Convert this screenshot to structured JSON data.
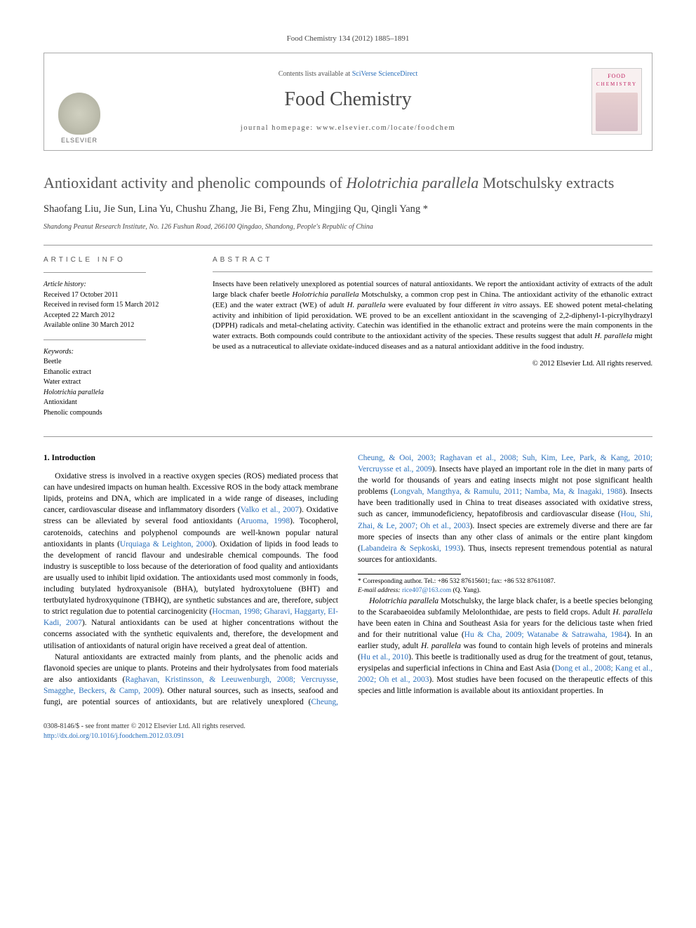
{
  "journal_ref": "Food Chemistry 134 (2012) 1885–1891",
  "header": {
    "contents_prefix": "Contents lists available at ",
    "contents_link": "SciVerse ScienceDirect",
    "journal_title": "Food Chemistry",
    "homepage_prefix": "journal homepage: ",
    "homepage_url": "www.elsevier.com/locate/foodchem",
    "publisher_name": "ELSEVIER",
    "cover_line1": "FOOD",
    "cover_line2": "CHEMISTRY"
  },
  "article": {
    "title_part1": "Antioxidant activity and phenolic compounds of ",
    "title_italic": "Holotrichia parallela",
    "title_part2": " Motschulsky extracts",
    "authors": "Shaofang Liu, Jie Sun, Lina Yu, Chushu Zhang, Jie Bi, Feng Zhu, Mingjing Qu, Qingli Yang *",
    "affiliation": "Shandong Peanut Research Institute, No. 126 Fushun Road, 266100 Qingdao, Shandong, People's Republic of China"
  },
  "article_info": {
    "heading": "ARTICLE INFO",
    "history_label": "Article history:",
    "received": "Received 17 October 2011",
    "revised": "Received in revised form 15 March 2012",
    "accepted": "Accepted 22 March 2012",
    "online": "Available online 30 March 2012",
    "keywords_label": "Keywords:",
    "keywords": [
      "Beetle",
      "Ethanolic extract",
      "Water extract",
      "Holotrichia parallela",
      "Antioxidant",
      "Phenolic compounds"
    ],
    "keyword_italic_index": 3
  },
  "abstract": {
    "heading": "ABSTRACT",
    "text_parts": [
      {
        "t": "Insects have been relatively unexplored as potential sources of natural antioxidants. We report the antioxidant activity of extracts of the adult large black chafer beetle "
      },
      {
        "t": "Holotrichia parallela",
        "italic": true
      },
      {
        "t": " Motschulsky, a common crop pest in China. The antioxidant activity of the ethanolic extract (EE) and the water extract (WE) of adult "
      },
      {
        "t": "H. parallela",
        "italic": true
      },
      {
        "t": " were evaluated by four different "
      },
      {
        "t": "in vitro",
        "italic": true
      },
      {
        "t": " assays. EE showed potent metal-chelating activity and inhibition of lipid peroxidation. WE proved to be an excellent antioxidant in the scavenging of 2,2-diphenyl-1-picrylhydrazyl (DPPH) radicals and metal-chelating activity. Catechin was identified in the ethanolic extract and proteins were the main components in the water extracts. Both compounds could contribute to the antioxidant activity of the species. These results suggest that adult "
      },
      {
        "t": "H. parallela",
        "italic": true
      },
      {
        "t": " might be used as a nutraceutical to alleviate oxidate-induced diseases and as a natural antioxidant additive in the food industry."
      }
    ],
    "copyright": "© 2012 Elsevier Ltd. All rights reserved."
  },
  "body": {
    "section_heading": "1. Introduction",
    "p1_parts": [
      {
        "t": "Oxidative stress is involved in a reactive oxygen species (ROS) mediated process that can have undesired impacts on human health. Excessive ROS in the body attack membrane lipids, proteins and DNA, which are implicated in a wide range of diseases, including cancer, cardiovascular disease and inflammatory disorders ("
      },
      {
        "t": "Valko et al., 2007",
        "ref": true
      },
      {
        "t": "). Oxidative stress can be alleviated by several food antioxidants ("
      },
      {
        "t": "Aruoma, 1998",
        "ref": true
      },
      {
        "t": "). Tocopherol, carotenoids, catechins and polyphenol compounds are well-known popular natural antioxidants in plants ("
      },
      {
        "t": "Urquiaga & Leighton, 2000",
        "ref": true
      },
      {
        "t": "). Oxidation of lipids in food leads to the development of rancid flavour and undesirable chemical compounds. The food industry is susceptible to loss because of the deterioration of food quality and antioxidants are usually used to inhibit lipid oxidation. The antioxidants used most commonly in foods, including butylated hydroxyanisole (BHA), butylated hydroxytoluene (BHT) and tertbutylated hydroxyquinone (TBHQ), are synthetic substances and are, therefore, subject to strict regulation due to potential carcinogenicity ("
      },
      {
        "t": "Hocman, 1998; Gharavi, Haggarty, EI-Kadi, 2007",
        "ref": true
      },
      {
        "t": "). Natural antioxidants can be used at higher concentrations without the concerns associated with the synthetic equivalents and, therefore, the development and utilisation of antioxidants of natural origin have received a great deal of attention."
      }
    ],
    "p2_parts": [
      {
        "t": "Natural antioxidants are extracted mainly from plants, and the phenolic acids and flavonoid species are unique to plants. Proteins and their hydrolysates from food materials are also antioxidants ("
      },
      {
        "t": "Raghavan, Kristinsson, & Leeuwenburgh, 2008; Vercruysse, Smagghe, Beckers, & Camp, 2009",
        "ref": true
      },
      {
        "t": "). Other natural sources, such as insects, seafood and fungi, are potential sources of antioxidants, but are relatively unexplored ("
      },
      {
        "t": "Cheung, Cheung, & Ooi, 2003; Raghavan et al., 2008; Suh, Kim, Lee, Park, & Kang, 2010; Vercruysse et al., 2009",
        "ref": true
      },
      {
        "t": "). Insects have played an important role in the diet in many parts of the world for thousands of years and eating insects might not pose significant health problems ("
      },
      {
        "t": "Longvah, Mangthya, & Ramulu, 2011; Namba, Ma, & Inagaki, 1988",
        "ref": true
      },
      {
        "t": "). Insects have been traditionally used in China to treat diseases associated with oxidative stress, such as cancer, immunodeficiency, hepatofibrosis and cardiovascular disease ("
      },
      {
        "t": "Hou, Shi, Zhai, & Le, 2007; Oh et al., 2003",
        "ref": true
      },
      {
        "t": "). Insect species are extremely diverse and there are far more species of insects than any other class of animals or the entire plant kingdom ("
      },
      {
        "t": "Labandeira & Sepkoski, 1993",
        "ref": true
      },
      {
        "t": "). Thus, insects represent tremendous potential as natural sources for antioxidants."
      }
    ],
    "p3_parts": [
      {
        "t": "Holotrichia parallela",
        "italic": true
      },
      {
        "t": " Motschulsky, the large black chafer, is a beetle species belonging to the Scarabaeoidea subfamily Melolonthidae, are pests to field crops. Adult "
      },
      {
        "t": "H. parallela",
        "italic": true
      },
      {
        "t": " have been eaten in China and Southeast Asia for years for the delicious taste when fried and for their nutritional value ("
      },
      {
        "t": "Hu & Cha, 2009; Watanabe & Satrawaha, 1984",
        "ref": true
      },
      {
        "t": "). In an earlier study, adult "
      },
      {
        "t": "H. parallela",
        "italic": true
      },
      {
        "t": " was found to contain high levels of proteins and minerals ("
      },
      {
        "t": "Hu et al., 2010",
        "ref": true
      },
      {
        "t": "). This beetle is traditionally used as drug for the treatment of gout, tetanus, erysipelas and superficial infections in China and East Asia ("
      },
      {
        "t": "Dong et al., 2008; Kang et al., 2002; Oh et al., 2003",
        "ref": true
      },
      {
        "t": "). Most studies have been focused on the therapeutic effects of this species and little information is available about its antioxidant properties. In"
      }
    ]
  },
  "footnote": {
    "corr_label": "* Corresponding author. Tel.: +86 532 87615601; fax: +86 532 87611087.",
    "email_label": "E-mail address:",
    "email": "rice407@163.com",
    "email_suffix": " (Q. Yang)."
  },
  "footer": {
    "line1": "0308-8146/$ - see front matter © 2012 Elsevier Ltd. All rights reserved.",
    "line2": "http://dx.doi.org/10.1016/j.foodchem.2012.03.091"
  },
  "colors": {
    "link": "#2a6fbb",
    "heading_gray": "#555555",
    "border": "#999999"
  }
}
